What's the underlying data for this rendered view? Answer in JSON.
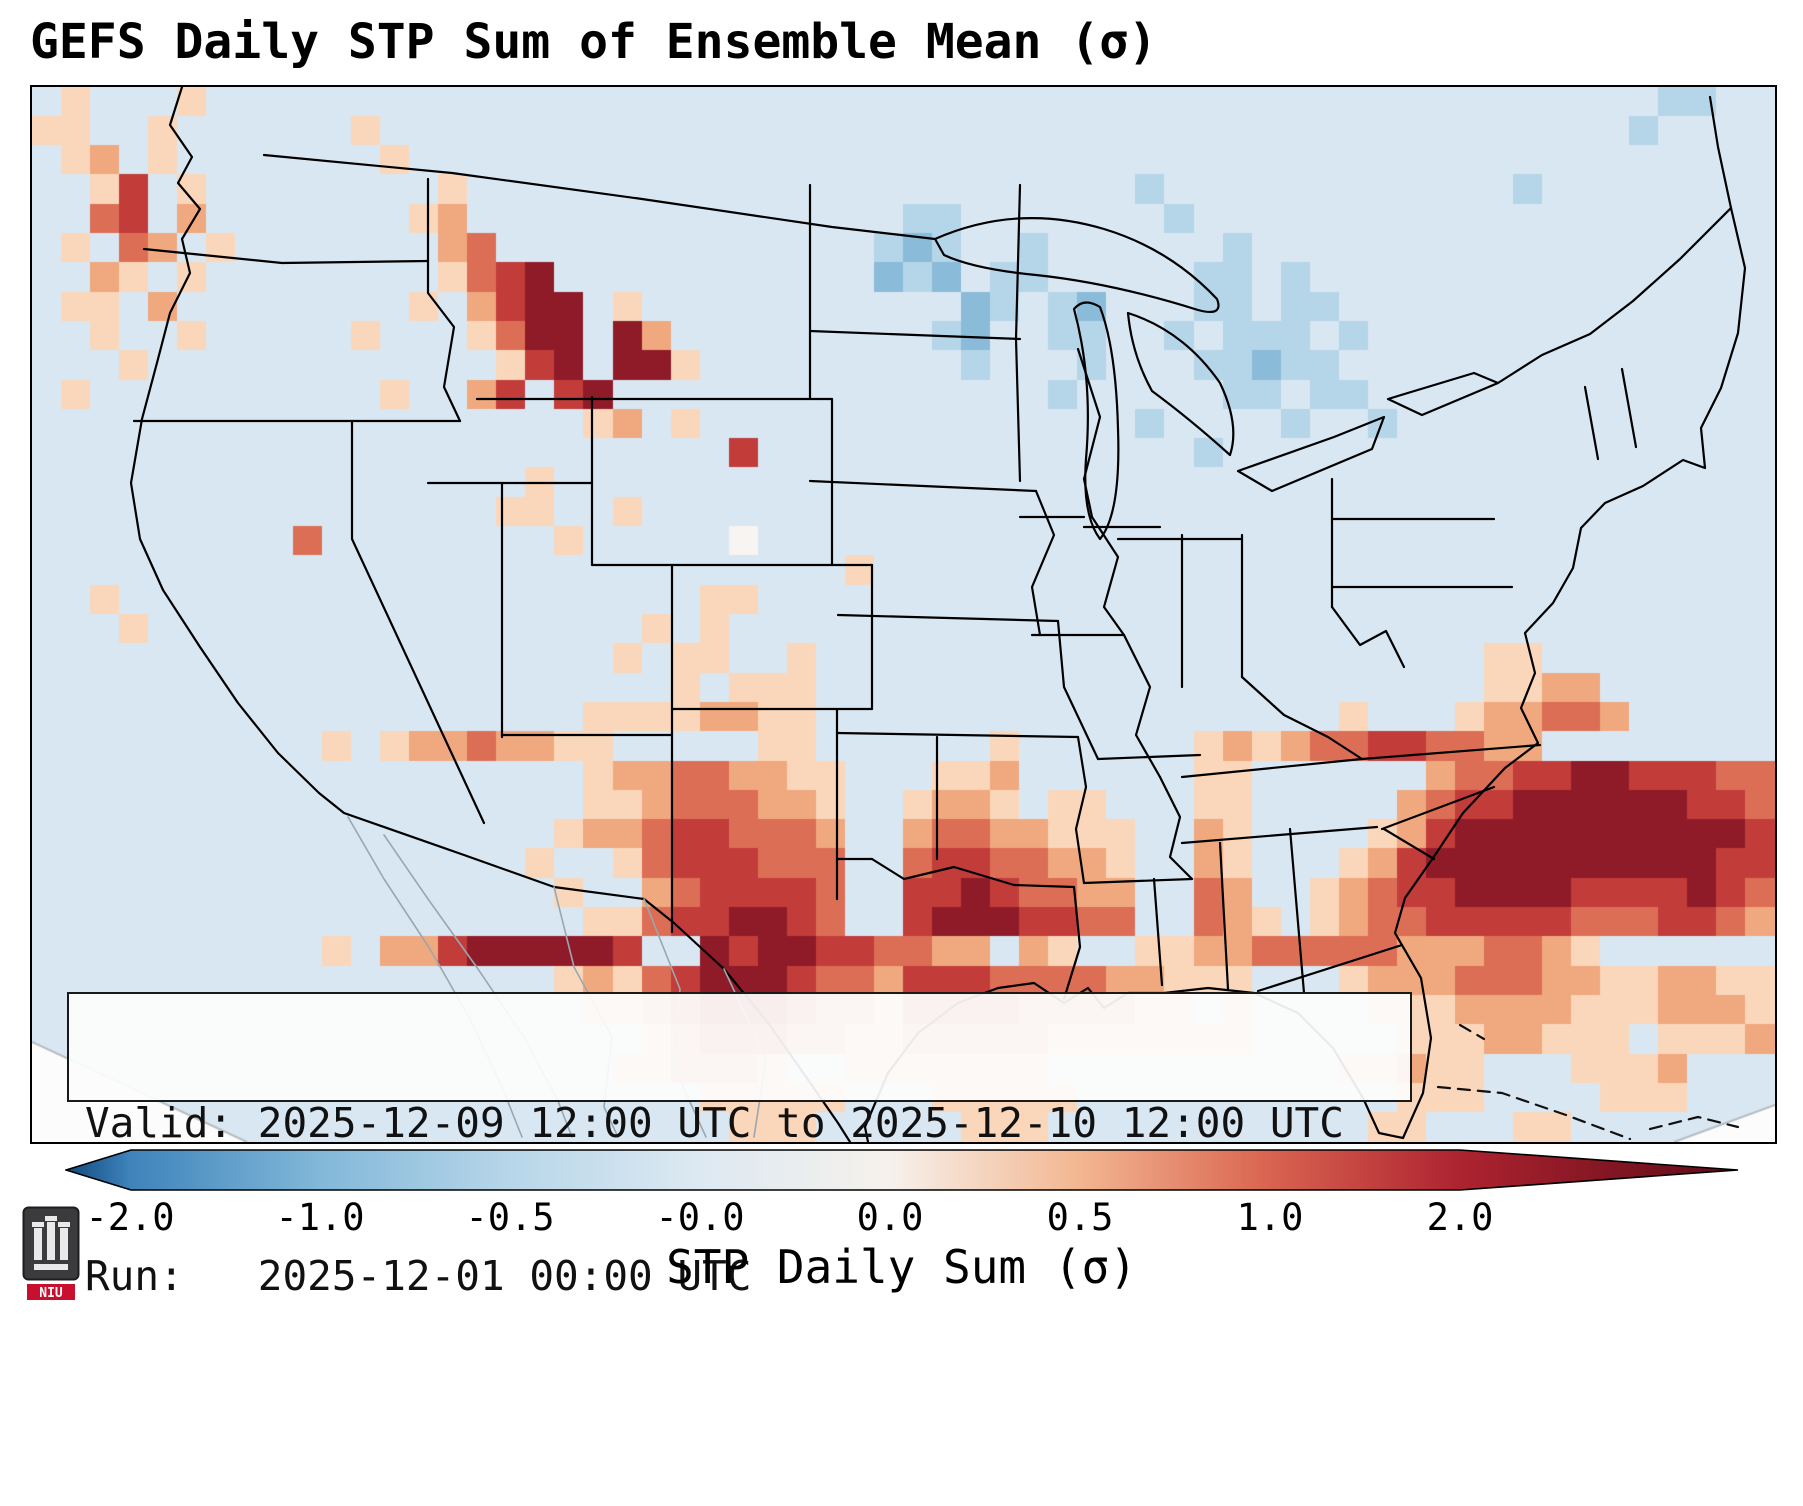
{
  "figure": {
    "title": "GEFS Daily STP Sum of Ensemble Mean (σ)"
  },
  "info_box": {
    "valid_line": "Valid: 2025-12-09 12:00 UTC to 2025-12-10 12:00 UTC",
    "run_line": "Run:   2025-12-01 00:00 UTC"
  },
  "colorbar": {
    "label": "STP Daily Sum (σ)",
    "ticks": [
      "-2.0",
      "-1.0",
      "-0.5",
      "-0.0",
      "0.0",
      "0.5",
      "1.0",
      "2.0"
    ]
  },
  "logo": {
    "text": "NIU"
  },
  "chart_data": {
    "type": "heatmap",
    "title": "GEFS Daily STP Sum of Ensemble Mean (σ)",
    "variable": "STP Daily Sum (σ)",
    "region": "Continental United States with surrounding ocean",
    "valid": "2025-12-09 12:00 UTC to 2025-12-10 12:00 UTC",
    "run": "2025-12-01 00:00 UTC",
    "colorbar_tick_labels": [
      "-2.0",
      "-1.0",
      "-0.5",
      "-0.0",
      "0.0",
      "0.5",
      "1.0",
      "2.0"
    ],
    "colorbar_extends": "both",
    "colormap_anchors": [
      [
        -2.0,
        "#1c5a9c"
      ],
      [
        -1.0,
        "#74add1"
      ],
      [
        -0.5,
        "#abd0e6"
      ],
      [
        -0.2,
        "#c9deee"
      ],
      [
        -0.1,
        "#d9e7f2"
      ],
      [
        0.0,
        "#f7f4f1"
      ],
      [
        0.3,
        "#fad7ba"
      ],
      [
        0.6,
        "#f0a87e"
      ],
      [
        1.0,
        "#dc6e56"
      ],
      [
        1.5,
        "#c23c3a"
      ],
      [
        2.0,
        "#8f1b28"
      ]
    ],
    "value_key": {
      ".": -0.1,
      "b": -0.4,
      "B": -0.8,
      "w": 0.0,
      "1": 0.3,
      "2": 0.6,
      "3": 1.0,
      "4": 1.5,
      "5": 2.0
    },
    "grid_cols": 60,
    "grid_rows_count": 36,
    "grid_rows": [
      ".1...1..................................................bb..b.",
      "11..1......1...........................................b....bb",
      ".12.1.......1................................................b....",
      "..14.1........1.......................b............b",
      "..34.2.......12...............bb.......b...................",
      ".1.32.1.......23.............bBb..b......b.................",
      "..21.1........1345...........BbB.bb.....bb.b...............",
      ".11.2........1.2455.1...........Bb.bB...bb.bb..............",
      "..1..1.....1...1355.52.........bB..bb..b.bbb.b.............",
      "...1............145.551.........b...b...bbBbb..............",
      ".1..........1..24.45...............b.....bb.bb.............",
      "...................12.1...............b....b..b............",
      "........................4...............b..................",
      ".................1.........................................",
      "................11..1......................................",
      ".........3........1.....w..................................",
      "............................1..............................",
      "..1....................11..................................",
      "...1.................1.1...................................",
      "....................1.11..1.......................11",
      "......................1.111.......................1122.",
      "...................11112211..................1...122332.",
      "..........1.12232211.....11......1......121233443322",
      "...................122332211...112......11......233445544433",
      "...................112333221..1221.11...11.....2344555555443",
      "..................1223443332..23322111..21....12455555555554",
      ".................1..13444333..34433221..21...124555555555544",
      "..................1..2344443..44543322..32..1234455554444543",
      "...................113445543..45554433..321.1233444443334432",
      "..........1.224555554..5455443322.21..1122333332223321",
      "..................121345554332444333322111...122233322112211",
      "...................112344432213333222211)1....111222211122211",
      ".....................123332211222221111111.....11122111.11121",
      "w...................112221..1111111..........11211...1112.",
      "ww.....................11111...11111...........111....111..",
      "www.....................111.....111...........11...11...."
    ]
  }
}
